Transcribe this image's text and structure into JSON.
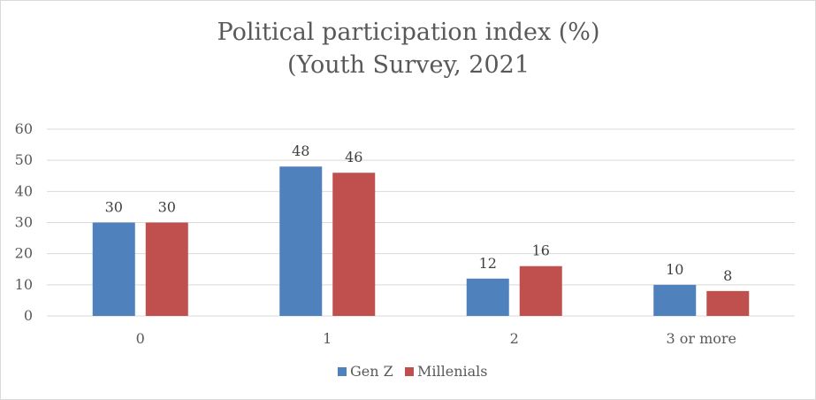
{
  "chart_data": {
    "type": "bar",
    "title": "Political participation index (%)",
    "subtitle": "(Youth Survey, 2021",
    "categories": [
      "0",
      "1",
      "2",
      "3 or more"
    ],
    "series": [
      {
        "name": "Gen Z",
        "values": [
          30,
          48,
          12,
          10
        ],
        "color": "#4f81bd"
      },
      {
        "name": "Millenials",
        "values": [
          30,
          46,
          16,
          8
        ],
        "color": "#c0504d"
      }
    ],
    "ylim": [
      0,
      60
    ],
    "yticks": [
      0,
      10,
      20,
      30,
      40,
      50,
      60
    ],
    "grid": true,
    "legend": "bottom",
    "data_labels": true
  }
}
